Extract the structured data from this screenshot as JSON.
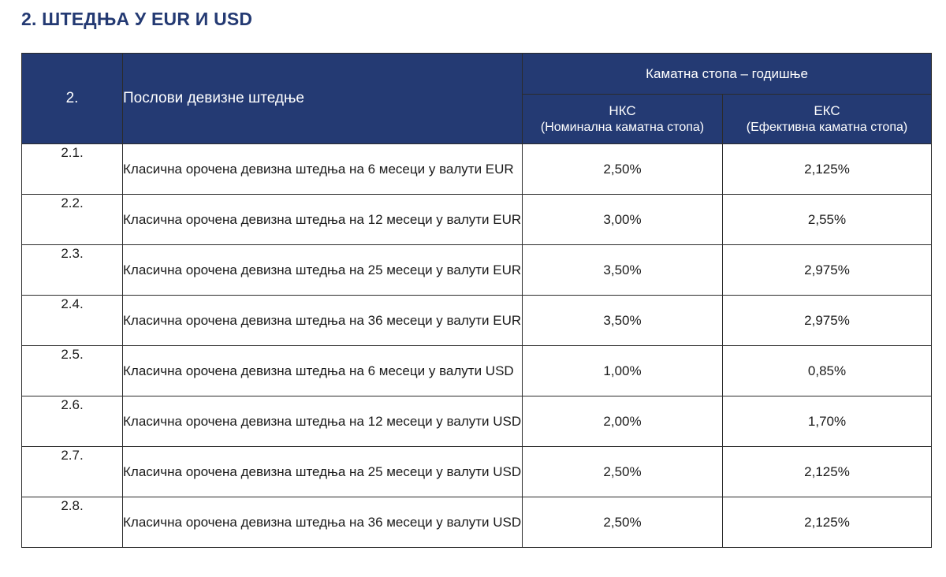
{
  "title": "2. ШТЕДЊА У EUR И USD",
  "table": {
    "header": {
      "number": "2.",
      "description": "Послови девизне штедње",
      "group": "Каматна стопа – годишње",
      "nks_short": "НКС",
      "nks_full": "(Номинална каматна стопа)",
      "eks_short": "ЕКС",
      "eks_full": "(Ефективна каматна стопа)"
    },
    "rows": [
      {
        "num": "2.1.",
        "description": "Класична орочена девизна штедња на 6 месеци у валути EUR",
        "nks": "2,50%",
        "eks": "2,125%"
      },
      {
        "num": "2.2.",
        "description": "Класична орочена девизна штедња на 12 месеци у валути EUR",
        "nks": "3,00%",
        "eks": "2,55%"
      },
      {
        "num": "2.3.",
        "description": "Класична орочена девизна штедња на 25 месеци у валути EUR",
        "nks": "3,50%",
        "eks": "2,975%"
      },
      {
        "num": "2.4.",
        "description": "Класична орочена девизна штедња на 36 месеци у валути EUR",
        "nks": "3,50%",
        "eks": "2,975%"
      },
      {
        "num": "2.5.",
        "description": "Класична орочена девизна штедња на 6 месеци у валути USD",
        "nks": "1,00%",
        "eks": "0,85%"
      },
      {
        "num": "2.6.",
        "description": "Класична орочена девизна штедња на 12 месеци у валути USD",
        "nks": "2,00%",
        "eks": "1,70%"
      },
      {
        "num": "2.7.",
        "description": "Класична орочена девизна штедња на 25 месеци у валути USD",
        "nks": "2,50%",
        "eks": "2,125%"
      },
      {
        "num": "2.8.",
        "description": "Класична орочена девизна штедња на 36 месеци у валути USD",
        "nks": "2,50%",
        "eks": "2,125%"
      }
    ]
  },
  "colors": {
    "header_bg": "#243a73",
    "title_color": "#243a73",
    "border": "#2b2b2b"
  }
}
